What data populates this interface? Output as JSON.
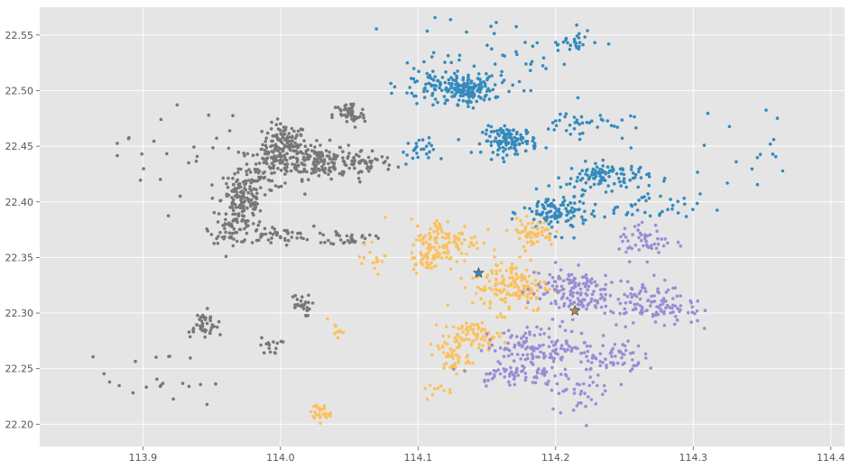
{
  "chart_data": {
    "type": "scatter",
    "title": "",
    "xlabel": "",
    "ylabel": "",
    "xlim": [
      113.825,
      114.41
    ],
    "ylim": [
      22.18,
      22.575
    ],
    "grid": true,
    "style": "ggplot",
    "background": "#e5e5e5",
    "x_ticks": [
      {
        "value": 113.9,
        "label": "113.9"
      },
      {
        "value": 114.0,
        "label": "114.0"
      },
      {
        "value": 114.1,
        "label": "114.1"
      },
      {
        "value": 114.2,
        "label": "114.2"
      },
      {
        "value": 114.3,
        "label": "114.3"
      },
      {
        "value": 114.4,
        "label": "114.4"
      }
    ],
    "y_ticks": [
      {
        "value": 22.2,
        "label": "22.20"
      },
      {
        "value": 22.25,
        "label": "22.25"
      },
      {
        "value": 22.3,
        "label": "22.30"
      },
      {
        "value": 22.35,
        "label": "22.35"
      },
      {
        "value": 22.4,
        "label": "22.40"
      },
      {
        "value": 22.45,
        "label": "22.45"
      },
      {
        "value": 22.5,
        "label": "22.50"
      },
      {
        "value": 22.55,
        "label": "22.55"
      }
    ],
    "series": [
      {
        "color": "#777777",
        "clusters": [
          {
            "x": 114.003,
            "y": 22.452,
            "sx": 0.008,
            "sy": 0.009,
            "n": 120
          },
          {
            "x": 114.027,
            "y": 22.437,
            "sx": 0.011,
            "sy": 0.008,
            "n": 140
          },
          {
            "x": 113.993,
            "y": 22.43,
            "sx": 0.011,
            "sy": 0.009,
            "n": 80
          },
          {
            "x": 113.973,
            "y": 22.402,
            "sx": 0.008,
            "sy": 0.013,
            "n": 140
          },
          {
            "x": 113.965,
            "y": 22.375,
            "sx": 0.008,
            "sy": 0.006,
            "n": 50
          },
          {
            "x": 113.996,
            "y": 22.37,
            "sx": 0.014,
            "sy": 0.004,
            "n": 50
          },
          {
            "x": 114.05,
            "y": 22.478,
            "sx": 0.006,
            "sy": 0.006,
            "n": 50
          },
          {
            "x": 114.06,
            "y": 22.435,
            "sx": 0.012,
            "sy": 0.006,
            "n": 60
          },
          {
            "x": 114.052,
            "y": 22.367,
            "sx": 0.008,
            "sy": 0.003,
            "n": 30
          },
          {
            "x": 113.943,
            "y": 22.29,
            "sx": 0.006,
            "sy": 0.006,
            "n": 40
          },
          {
            "x": 114.014,
            "y": 22.307,
            "sx": 0.004,
            "sy": 0.005,
            "n": 25
          },
          {
            "x": 113.993,
            "y": 22.27,
            "sx": 0.004,
            "sy": 0.004,
            "n": 15
          },
          {
            "x": 113.93,
            "y": 22.443,
            "sx": 0.025,
            "sy": 0.025,
            "n": 30
          },
          {
            "x": 113.9,
            "y": 22.24,
            "sx": 0.04,
            "sy": 0.02,
            "n": 25
          }
        ]
      },
      {
        "color": "#348abd",
        "clusters": [
          {
            "x": 114.135,
            "y": 22.5,
            "sx": 0.01,
            "sy": 0.006,
            "n": 140
          },
          {
            "x": 114.167,
            "y": 22.455,
            "sx": 0.01,
            "sy": 0.006,
            "n": 120
          },
          {
            "x": 114.238,
            "y": 22.423,
            "sx": 0.015,
            "sy": 0.006,
            "n": 100
          },
          {
            "x": 114.2,
            "y": 22.39,
            "sx": 0.012,
            "sy": 0.009,
            "n": 120
          },
          {
            "x": 114.11,
            "y": 22.505,
            "sx": 0.012,
            "sy": 0.008,
            "n": 60
          },
          {
            "x": 114.16,
            "y": 22.53,
            "sx": 0.03,
            "sy": 0.02,
            "n": 60
          },
          {
            "x": 114.215,
            "y": 22.47,
            "sx": 0.02,
            "sy": 0.006,
            "n": 40
          },
          {
            "x": 114.21,
            "y": 22.543,
            "sx": 0.01,
            "sy": 0.004,
            "n": 25
          },
          {
            "x": 114.1,
            "y": 22.445,
            "sx": 0.006,
            "sy": 0.006,
            "n": 25
          },
          {
            "x": 114.265,
            "y": 22.395,
            "sx": 0.02,
            "sy": 0.006,
            "n": 40
          },
          {
            "x": 114.33,
            "y": 22.44,
            "sx": 0.04,
            "sy": 0.025,
            "n": 20
          }
        ]
      },
      {
        "color": "#fbc15e",
        "clusters": [
          {
            "x": 114.168,
            "y": 22.325,
            "sx": 0.014,
            "sy": 0.012,
            "n": 150
          },
          {
            "x": 114.12,
            "y": 22.365,
            "sx": 0.013,
            "sy": 0.01,
            "n": 110
          },
          {
            "x": 114.183,
            "y": 22.372,
            "sx": 0.008,
            "sy": 0.006,
            "n": 60
          },
          {
            "x": 114.108,
            "y": 22.35,
            "sx": 0.006,
            "sy": 0.006,
            "n": 40
          },
          {
            "x": 114.14,
            "y": 22.28,
            "sx": 0.011,
            "sy": 0.006,
            "n": 80
          },
          {
            "x": 114.125,
            "y": 22.26,
            "sx": 0.006,
            "sy": 0.008,
            "n": 40
          },
          {
            "x": 114.028,
            "y": 22.21,
            "sx": 0.004,
            "sy": 0.004,
            "n": 25
          },
          {
            "x": 114.04,
            "y": 22.284,
            "sx": 0.003,
            "sy": 0.003,
            "n": 10
          },
          {
            "x": 114.07,
            "y": 22.35,
            "sx": 0.006,
            "sy": 0.006,
            "n": 15
          },
          {
            "x": 114.115,
            "y": 22.228,
            "sx": 0.006,
            "sy": 0.004,
            "n": 10
          }
        ]
      },
      {
        "color": "#988ed5",
        "clusters": [
          {
            "x": 114.21,
            "y": 22.32,
            "sx": 0.015,
            "sy": 0.012,
            "n": 130
          },
          {
            "x": 114.26,
            "y": 22.31,
            "sx": 0.018,
            "sy": 0.01,
            "n": 100
          },
          {
            "x": 114.19,
            "y": 22.27,
            "sx": 0.02,
            "sy": 0.008,
            "n": 130
          },
          {
            "x": 114.24,
            "y": 22.26,
            "sx": 0.012,
            "sy": 0.008,
            "n": 60
          },
          {
            "x": 114.17,
            "y": 22.245,
            "sx": 0.015,
            "sy": 0.005,
            "n": 60
          },
          {
            "x": 114.265,
            "y": 22.365,
            "sx": 0.01,
            "sy": 0.008,
            "n": 50
          },
          {
            "x": 114.215,
            "y": 22.23,
            "sx": 0.012,
            "sy": 0.01,
            "n": 40
          },
          {
            "x": 114.285,
            "y": 22.3,
            "sx": 0.01,
            "sy": 0.01,
            "n": 30
          }
        ]
      }
    ],
    "markers": [
      {
        "x": 114.144,
        "y": 22.336,
        "color": "#348abd",
        "symbol": "star"
      },
      {
        "x": 114.214,
        "y": 22.302,
        "color": "#b08c4a",
        "symbol": "star"
      }
    ]
  }
}
